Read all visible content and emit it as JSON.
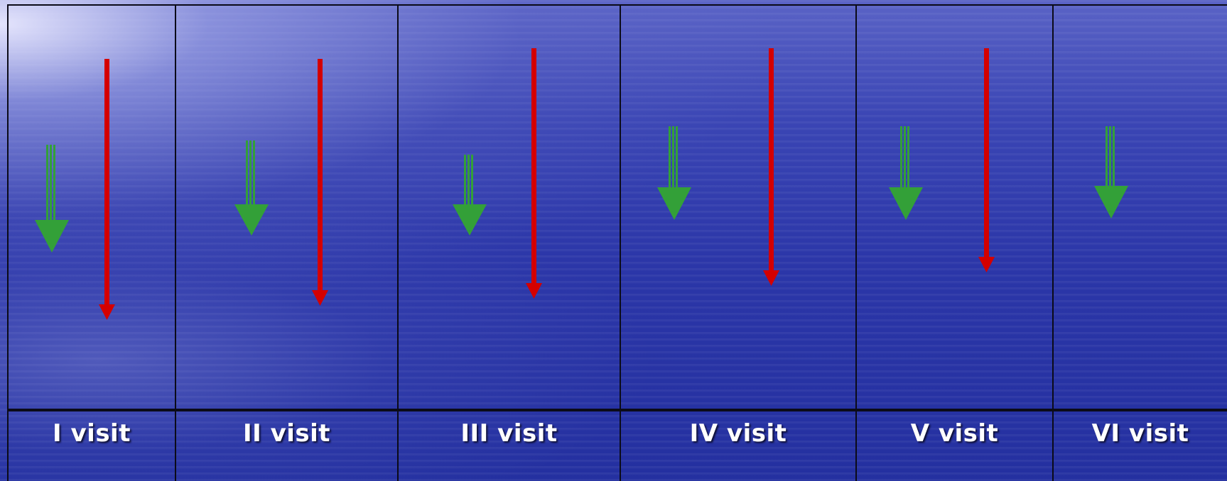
{
  "panels": [
    {
      "label": "I visit"
    },
    {
      "label": "II visit"
    },
    {
      "label": "III visit"
    },
    {
      "label": "IV visit"
    },
    {
      "label": "V visit"
    },
    {
      "label": "VI visit"
    }
  ],
  "colors": {
    "green_arrow": "#33a038",
    "red_arrow": "#d40000",
    "grid": "#0b0b18",
    "label_text": "#ffffff"
  },
  "icons": {
    "green": "green-triple-shaft-down-arrow",
    "red": "red-down-arrow"
  }
}
